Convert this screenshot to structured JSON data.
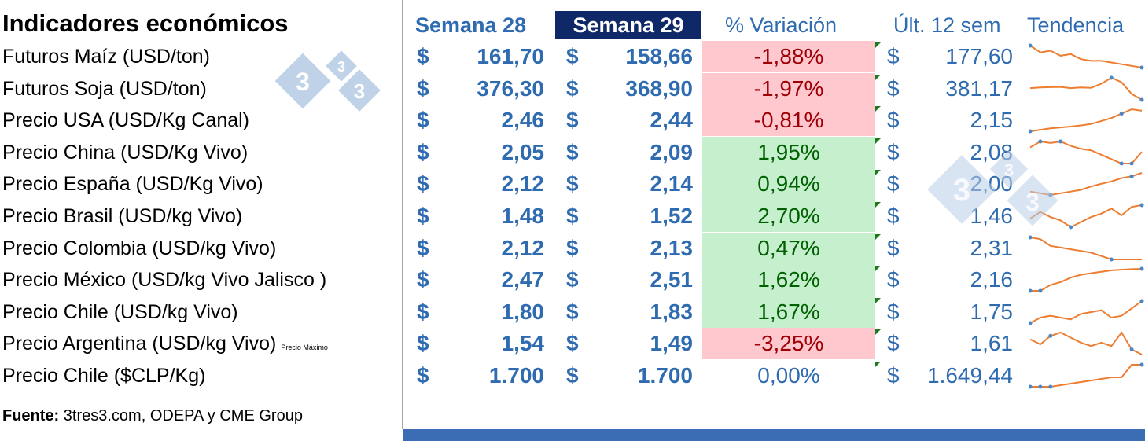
{
  "title": "Indicadores económicos",
  "headers": {
    "week28": "Semana 28",
    "week29": "Semana 29",
    "variation": "% Variación",
    "last12": "Últ. 12 sem",
    "trend": "Tendencia"
  },
  "currency_symbol": "$",
  "logo": {
    "digits": [
      "3",
      "3",
      "3"
    ],
    "color": "#b8cde6"
  },
  "colors": {
    "blue_text": "#2f6bb0",
    "header_highlight_bg": "#0f2868",
    "negative_bg": "#ffc7ce",
    "negative_text": "#9c0006",
    "positive_bg": "#c6efce",
    "positive_text": "#006100",
    "sparkline": "#ed7d31",
    "sparkline_marker": "#4a86c8",
    "bottom_bar": "#3b6db4"
  },
  "rows": [
    {
      "label": "Futuros Maíz (USD/ton)",
      "note": "",
      "w28": "161,70",
      "w29": "158,66",
      "var": "-1,88%",
      "status": "negative",
      "last12": "177,60",
      "trend": [
        9,
        7,
        7.5,
        6,
        6.5,
        5,
        4.5,
        4.5,
        4,
        3.5,
        3,
        2.5
      ],
      "trend_markers": [
        0,
        11
      ]
    },
    {
      "label": "Futuros Soja (USD/ton)",
      "note": "",
      "w28": "376,30",
      "w29": "368,90",
      "var": "-1,97%",
      "status": "negative",
      "last12": "381,17",
      "trend": [
        5,
        5.2,
        5.3,
        5.4,
        5,
        5.2,
        5.1,
        6.5,
        8.5,
        7,
        3,
        1
      ],
      "trend_markers": [
        8,
        11
      ]
    },
    {
      "label": "Precio USA (USD/Kg Canal)",
      "note": "",
      "w28": "2,46",
      "w29": "2,44",
      "var": "-0,81%",
      "status": "negative",
      "last12": "2,15",
      "trend": [
        1,
        1.5,
        2,
        2.3,
        2.6,
        3,
        3.5,
        4.5,
        5.5,
        7,
        8.5,
        8
      ],
      "trend_markers": [
        0,
        9
      ]
    },
    {
      "label": "Precio China (USD/Kg Vivo)",
      "note": "",
      "w28": "2,05",
      "w29": "2,09",
      "var": "1,95%",
      "status": "positive",
      "last12": "2,08",
      "trend": [
        7,
        9,
        8.5,
        9,
        7.5,
        6.5,
        6,
        4.5,
        3,
        1.5,
        1.5,
        5.5
      ],
      "trend_markers": [
        1,
        3,
        9,
        10
      ]
    },
    {
      "label": "Precio España (USD/Kg Vivo)",
      "note": "",
      "w28": "2,12",
      "w29": "2,14",
      "var": "0,94%",
      "status": "positive",
      "last12": "2,00",
      "trend": [
        3.5,
        3,
        2.5,
        3,
        3.5,
        4,
        5,
        5.8,
        6.5,
        7.5,
        8,
        9
      ],
      "trend_markers": [
        2,
        10
      ]
    },
    {
      "label": "Precio  Brasil (USD/kg Vivo)",
      "note": "",
      "w28": "1,48",
      "w29": "1,52",
      "var": "2,70%",
      "status": "positive",
      "last12": "1,46",
      "trend": [
        4,
        6,
        4.5,
        3.5,
        1.5,
        3,
        4.5,
        5.5,
        7,
        5,
        7.5,
        8
      ],
      "trend_markers": [
        4,
        11
      ]
    },
    {
      "label": "Precio Colombia (USD/kg Vivo)",
      "note": "",
      "w28": "2,12",
      "w29": "2,13",
      "var": "0,47%",
      "status": "positive",
      "last12": "2,31",
      "trend": [
        9,
        8.5,
        6.5,
        6,
        5.5,
        5,
        4.5,
        3.5,
        2.5,
        2.5,
        2.5,
        2.5
      ],
      "trend_markers": [
        0,
        8
      ]
    },
    {
      "label": "Precio México (USD/kg Vivo Jalisco )",
      "note": "",
      "w28": "2,47",
      "w29": "2,51",
      "var": "1,62%",
      "status": "positive",
      "last12": "2,16",
      "trend": [
        1,
        1,
        3,
        4,
        5.5,
        6.5,
        7,
        7.5,
        8,
        8.2,
        8.4,
        8.5
      ],
      "trend_markers": [
        0,
        1,
        11
      ]
    },
    {
      "label": "Precio Chile (USD/kg Vivo)",
      "note": "",
      "w28": "1,80",
      "w29": "1,83",
      "var": "1,67%",
      "status": "positive",
      "last12": "1,75",
      "trend": [
        2,
        3.5,
        4,
        3.5,
        3,
        4.5,
        5,
        5.5,
        3.5,
        4,
        6,
        8
      ],
      "trend_markers": [
        0,
        11
      ]
    },
    {
      "label": "Precio Argentina (USD/kg Vivo)",
      "note": "Precio Máximo",
      "w28": "1,54",
      "w29": "1,49",
      "var": "-3,25%",
      "status": "negative",
      "last12": "1,61",
      "trend": [
        7,
        5.5,
        8,
        9,
        7.5,
        6,
        5,
        6,
        5,
        9,
        4,
        2.5
      ],
      "trend_markers": [
        2,
        10
      ]
    },
    {
      "label": "Precio Chile ($CLP/Kg)",
      "note": "",
      "w28": "1.700",
      "w29": "1.700",
      "var": "0,00%",
      "status": "zero",
      "last12": "1.649,44",
      "trend": [
        1,
        1,
        1,
        1.5,
        2,
        2.5,
        3,
        3.5,
        4,
        4,
        8,
        8
      ],
      "trend_markers": [
        0,
        1,
        2,
        11
      ]
    }
  ],
  "source": {
    "label": "Fuente:",
    "text": "3tres3.com, ODEPA y CME Group"
  }
}
